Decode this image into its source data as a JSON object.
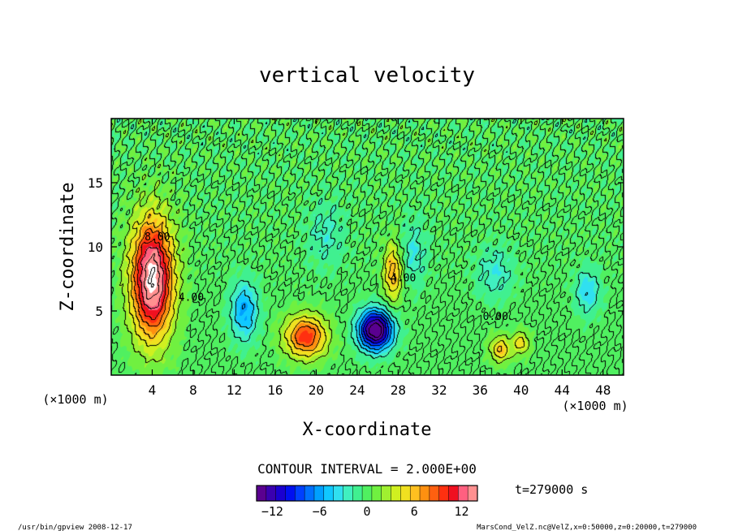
{
  "chart_data": {
    "type": "heatmap",
    "title": "vertical velocity",
    "xlabel": "X-coordinate",
    "ylabel": "Z-coordinate",
    "x_unit": "(×1000 m)",
    "y_unit": "(×1000 m)",
    "xlim": [
      0,
      50
    ],
    "ylim": [
      0,
      20
    ],
    "x_ticks": [
      4,
      8,
      12,
      16,
      20,
      24,
      28,
      32,
      36,
      40,
      44,
      48
    ],
    "y_ticks": [
      5,
      10,
      15
    ],
    "contour_interval_label": "CONTOUR INTERVAL = 2.000E+00",
    "time_label": "t=279000 s",
    "contour_labels": [
      {
        "text": "8.00",
        "x": 4.5,
        "z": 10.5
      },
      {
        "text": "4.00",
        "x": 7.8,
        "z": 5.8
      },
      {
        "text": "4.00",
        "x": 28.5,
        "z": 7.3
      },
      {
        "text": "0.00",
        "x": 37.5,
        "z": 4.3
      }
    ],
    "colorbar": {
      "min": -14,
      "max": 14,
      "ticks": [
        -12,
        -6,
        0,
        6,
        12
      ],
      "colors": [
        "#5a0090",
        "#3a00b0",
        "#1a00d0",
        "#0010f0",
        "#0040ff",
        "#0070ff",
        "#00a0ff",
        "#10c8ff",
        "#30e0f0",
        "#40f0c0",
        "#40f090",
        "#50f060",
        "#70f040",
        "#a0f030",
        "#d0f020",
        "#f0e020",
        "#ffc020",
        "#ff9010",
        "#ff6010",
        "#ff3010",
        "#f01020",
        "#ff6080",
        "#ff9090"
      ]
    },
    "features": [
      {
        "x": 4.0,
        "z": 7.5,
        "amp": 16,
        "sx": 2.0,
        "sz": 4.5
      },
      {
        "x": 19.0,
        "z": 3.0,
        "amp": 10,
        "sx": 2.0,
        "sz": 1.6
      },
      {
        "x": 25.8,
        "z": 3.5,
        "amp": -16,
        "sx": 1.6,
        "sz": 1.5
      },
      {
        "x": 27.5,
        "z": 8.0,
        "amp": 7,
        "sx": 0.9,
        "sz": 2.2
      },
      {
        "x": 13.0,
        "z": 5.0,
        "amp": -6,
        "sx": 1.3,
        "sz": 2.2
      },
      {
        "x": 38.0,
        "z": 2.0,
        "amp": 6,
        "sx": 1.0,
        "sz": 1.0
      },
      {
        "x": 40.0,
        "z": 2.5,
        "amp": 5,
        "sx": 0.8,
        "sz": 0.9
      },
      {
        "x": 46.5,
        "z": 6.5,
        "amp": -4,
        "sx": 1.2,
        "sz": 1.8
      },
      {
        "x": 37.5,
        "z": 8.0,
        "amp": -3,
        "sx": 1.8,
        "sz": 2.0
      },
      {
        "x": 29.5,
        "z": 9.5,
        "amp": -3,
        "sx": 1.3,
        "sz": 2.5
      },
      {
        "x": 21.0,
        "z": 11.0,
        "amp": -2.5,
        "sx": 1.8,
        "sz": 2.5
      }
    ]
  },
  "footer": {
    "left": "/usr/bin/gpview   2008-12-17",
    "right": "MarsCond_VelZ.nc@VelZ,x=0:50000,z=0:20000,t=279000"
  }
}
